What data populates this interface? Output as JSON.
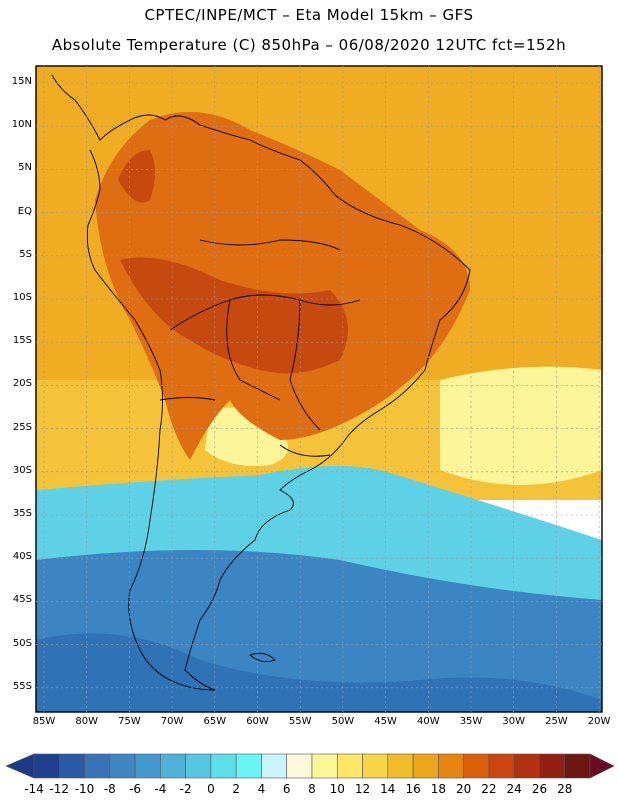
{
  "title_line1": "CPTEC/INPE/MCT –  Eta Model 15km – GFS",
  "title_line2": "Absolute Temperature (C) 850hPa – 06/08/2020 12UTC fct=152h",
  "lat_labels": [
    "15N",
    "10N",
    "5N",
    "EQ",
    "5S",
    "10S",
    "15S",
    "20S",
    "25S",
    "30S",
    "35S",
    "40S",
    "45S",
    "50S",
    "55S"
  ],
  "lon_labels": [
    "85W",
    "80W",
    "75W",
    "70W",
    "65W",
    "60W",
    "55W",
    "50W",
    "45W",
    "40W",
    "35W",
    "30W",
    "25W",
    "20W"
  ],
  "colorbar": {
    "labels": [
      "-14",
      "-12",
      "-10",
      "-8",
      "-6",
      "-4",
      "-2",
      "0",
      "2",
      "4",
      "6",
      "8",
      "10",
      "12",
      "14",
      "16",
      "18",
      "20",
      "22",
      "24",
      "26",
      "28"
    ],
    "colors": [
      "#1f3f8f",
      "#2a5aa6",
      "#3a73b8",
      "#3f86c2",
      "#4699cc",
      "#4fb0d8",
      "#57c6e2",
      "#5ddfea",
      "#6af5f5",
      "#c9f4fa",
      "#fdf8dc",
      "#fdf79a",
      "#fde66a",
      "#f8d44a",
      "#f2bd2b",
      "#eda51a",
      "#e58612",
      "#dc5f0d",
      "#cc4510",
      "#b03210",
      "#922012",
      "#6e1710"
    ],
    "arrow_low": "#1e3a86",
    "arrow_high": "#6a0a24"
  },
  "background_colors": {
    "north_ocean": "#f0ac23",
    "warm_land": "#df6e12",
    "hot_core": "#c64a10",
    "subtropical": "#f4c33a",
    "pale_band": "#fdf59a",
    "cool": "#5fd1e6",
    "cold": "#3b86c2",
    "colder": "#2f73b6"
  }
}
